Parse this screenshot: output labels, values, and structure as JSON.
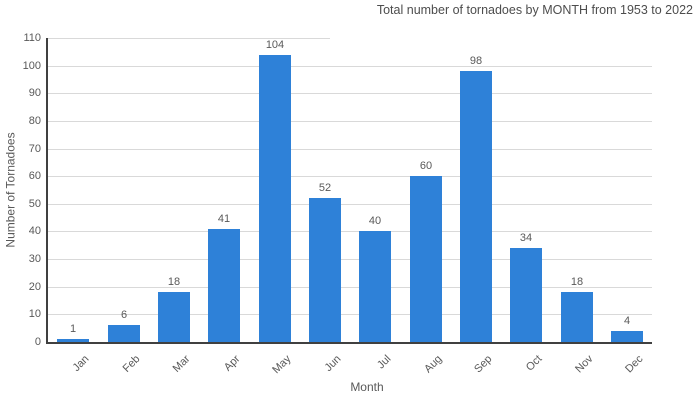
{
  "chart_data": {
    "type": "bar",
    "title": "Total number of tornadoes by MONTH from 1953 to 2022",
    "xlabel": "Month",
    "ylabel": "Number of Tornadoes",
    "categories": [
      "Jan",
      "Feb",
      "Mar",
      "Apr",
      "May",
      "Jun",
      "Jul",
      "Aug",
      "Sep",
      "Oct",
      "Nov",
      "Dec"
    ],
    "values": [
      1,
      6,
      18,
      41,
      104,
      52,
      40,
      60,
      98,
      34,
      18,
      4
    ],
    "yticks": [
      0,
      10,
      20,
      30,
      40,
      50,
      60,
      70,
      80,
      90,
      100,
      110
    ],
    "ylim": [
      0,
      110
    ],
    "grid": true,
    "legend": "none",
    "data_labels": true
  },
  "colors": {
    "bar": "#2e81d8",
    "axis_line": "#404040",
    "gridline": "#d9d9d9",
    "title_text": "#4d4d4d",
    "tick_text": "#595959",
    "background": "#ffffff"
  }
}
